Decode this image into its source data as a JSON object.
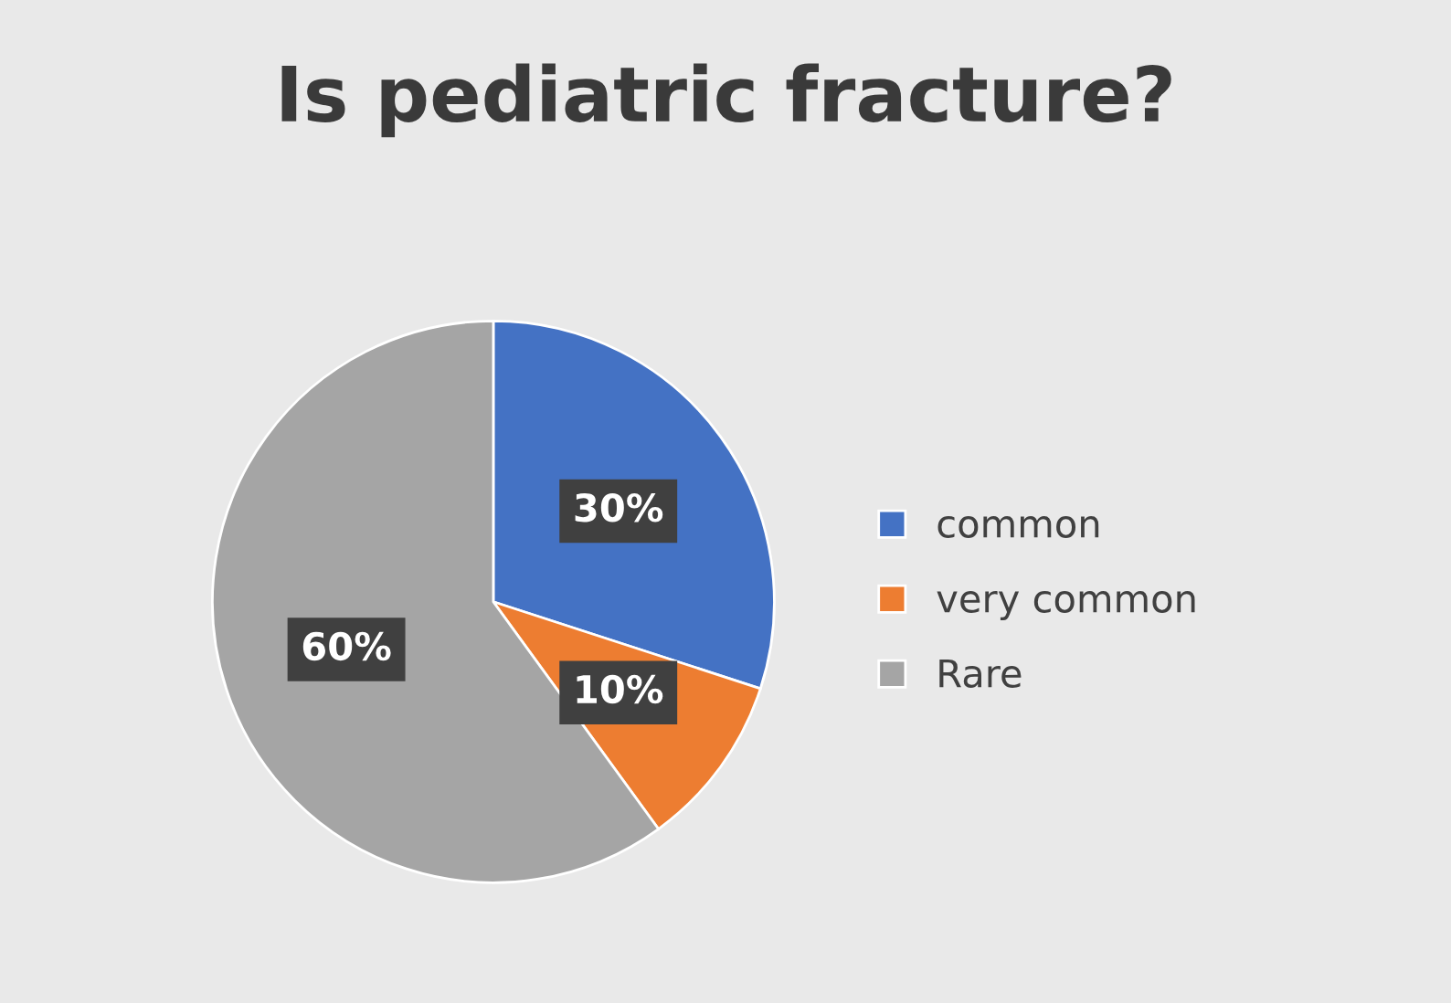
{
  "chart_data": {
    "type": "pie",
    "title": "Is pediatric fracture?",
    "categories": [
      "common",
      "very common",
      "Rare"
    ],
    "values": [
      30,
      10,
      60
    ],
    "colors": [
      "#4472c4",
      "#ed7d31",
      "#a5a5a5"
    ],
    "value_labels": [
      "30%",
      "10%",
      "60%"
    ],
    "legend": "right"
  }
}
